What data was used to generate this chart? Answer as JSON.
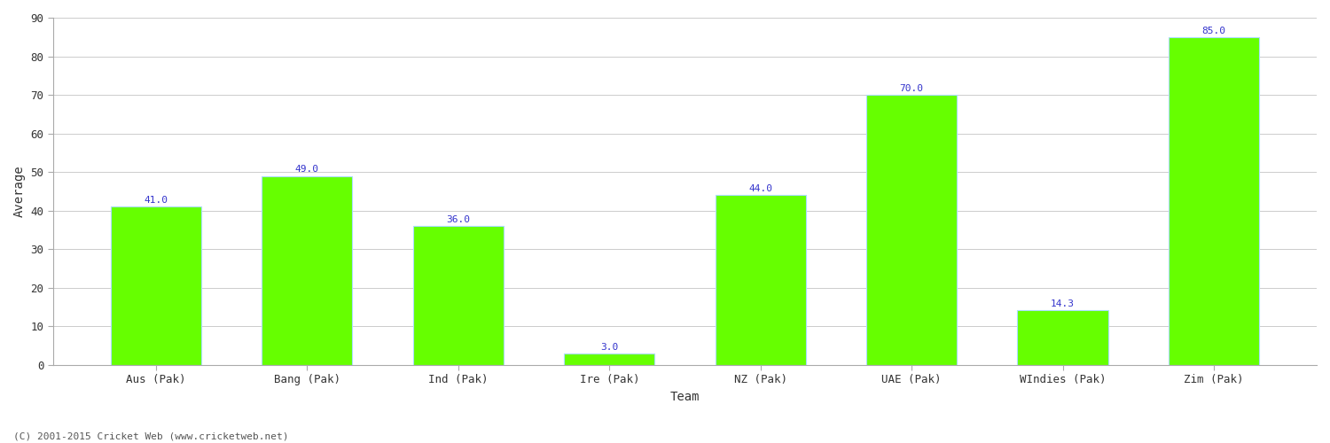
{
  "categories": [
    "Aus (Pak)",
    "Bang (Pak)",
    "Ind (Pak)",
    "Ire (Pak)",
    "NZ (Pak)",
    "UAE (Pak)",
    "WIndies (Pak)",
    "Zim (Pak)"
  ],
  "values": [
    41.0,
    49.0,
    36.0,
    3.0,
    44.0,
    70.0,
    14.3,
    85.0
  ],
  "bar_color": "#66ff00",
  "bar_edge_color": "#aaddff",
  "label_color": "#3333cc",
  "xlabel": "Team",
  "ylabel": "Average",
  "ylim": [
    0,
    90
  ],
  "yticks": [
    0,
    10,
    20,
    30,
    40,
    50,
    60,
    70,
    80,
    90
  ],
  "background_color": "#ffffff",
  "grid_color": "#cccccc",
  "tick_label_fontsize": 9,
  "axis_label_fontsize": 10,
  "bar_label_fontsize": 8,
  "footer_text": "(C) 2001-2015 Cricket Web (www.cricketweb.net)",
  "footer_fontsize": 8,
  "footer_color": "#555555",
  "bar_width": 0.6,
  "spine_color": "#aaaaaa"
}
